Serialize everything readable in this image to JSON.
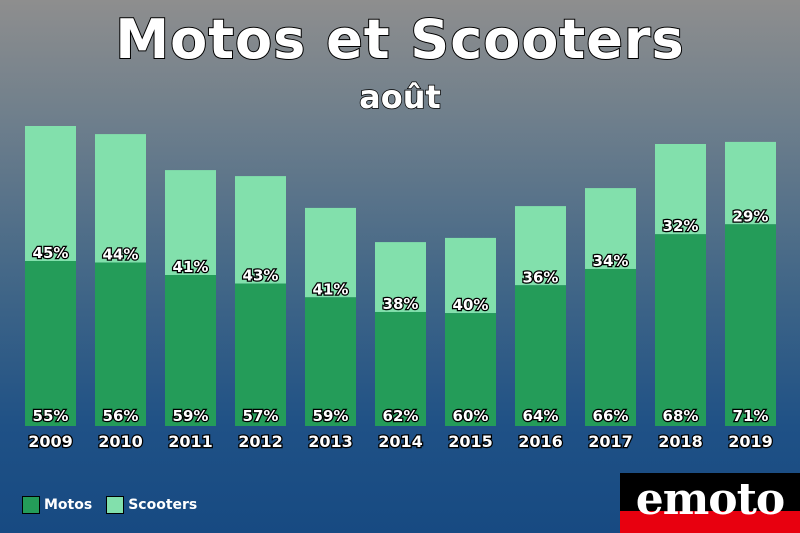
{
  "title": "Motos et Scooters",
  "subtitle": "août",
  "legend": {
    "motos": "Motos",
    "scooters": "Scooters"
  },
  "logo": {
    "text": "emoto"
  },
  "colors": {
    "motos": "#249c59",
    "scooters": "#82e0ac",
    "label_text": "#ffffff"
  },
  "chart_data": {
    "type": "bar",
    "stacked": true,
    "title": "Motos et Scooters",
    "subtitle": "août",
    "categories": [
      "2009",
      "2010",
      "2011",
      "2012",
      "2013",
      "2014",
      "2015",
      "2016",
      "2017",
      "2018",
      "2019"
    ],
    "totals_relative": [
      100,
      97.3,
      85.3,
      83.3,
      72.7,
      61.3,
      62.7,
      73.3,
      79.3,
      94,
      94.7
    ],
    "series": [
      {
        "name": "Motos",
        "values": [
          55,
          56,
          59,
          57,
          59,
          62,
          60,
          64,
          66,
          68,
          71
        ],
        "labels": [
          "55%",
          "56%",
          "59%",
          "57%",
          "59%",
          "62%",
          "60%",
          "64%",
          "66%",
          "68%",
          "71%"
        ]
      },
      {
        "name": "Scooters",
        "values": [
          45,
          44,
          41,
          43,
          41,
          38,
          40,
          36,
          34,
          32,
          29
        ],
        "labels": [
          "45%",
          "44%",
          "41%",
          "43%",
          "41%",
          "38%",
          "40%",
          "36%",
          "34%",
          "32%",
          "29%"
        ]
      }
    ],
    "xlabel": "",
    "ylabel": "",
    "grid": false,
    "legend_position": "bottom-left"
  }
}
